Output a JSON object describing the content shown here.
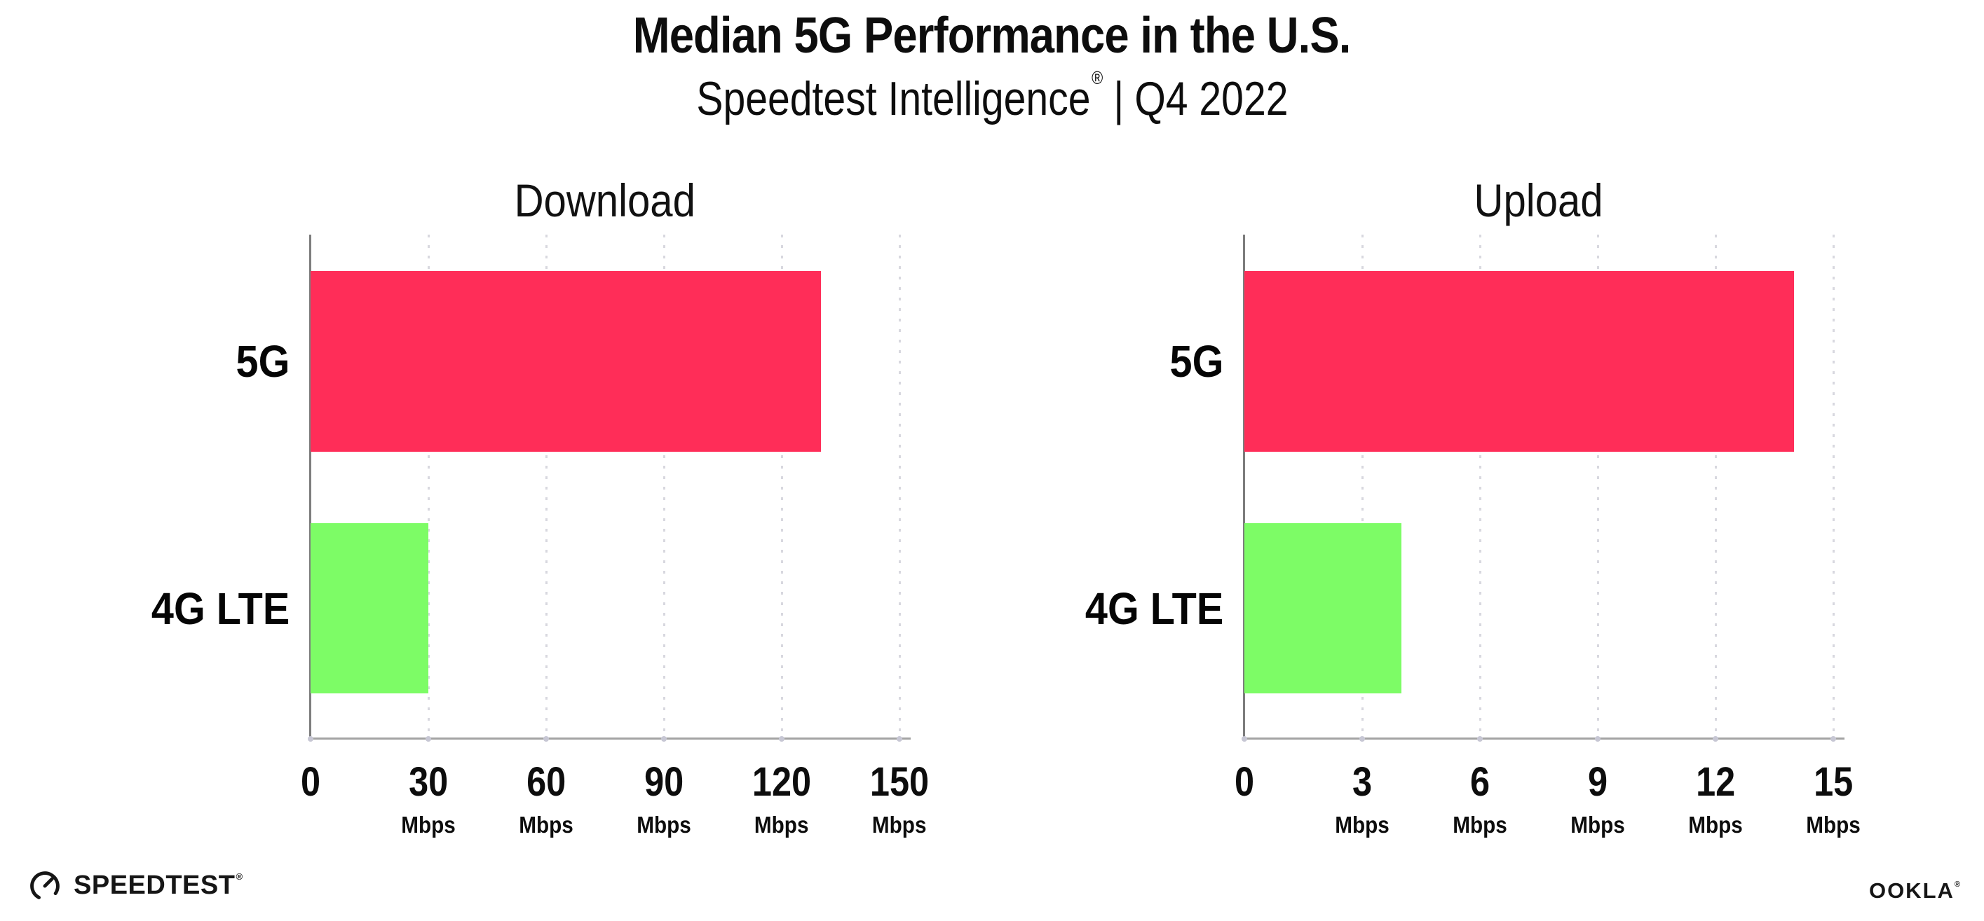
{
  "header": {
    "title": "Median 5G Performance in the U.S.",
    "subtitle": {
      "brand": "Speedtest Intelligence",
      "registered_mark": "®",
      "separator": "|",
      "period": "Q4 2022"
    }
  },
  "chart_data": [
    {
      "type": "bar",
      "orientation": "horizontal",
      "title": "Download",
      "categories": [
        "5G",
        "4G LTE"
      ],
      "values": [
        130,
        30
      ],
      "unit": "Mbps",
      "xlabel": "",
      "ylabel": "",
      "xlim": [
        0,
        150
      ],
      "xticks": [
        0,
        30,
        60,
        90,
        120,
        150
      ],
      "bar_colors": [
        "#ff2d58",
        "#7dfc66"
      ],
      "grid": "vertical-dotted-light",
      "legend": "none"
    },
    {
      "type": "bar",
      "orientation": "horizontal",
      "title": "Upload",
      "categories": [
        "5G",
        "4G LTE"
      ],
      "values": [
        14,
        4
      ],
      "unit": "Mbps",
      "xlabel": "",
      "ylabel": "",
      "xlim": [
        0,
        15
      ],
      "xticks": [
        0,
        3,
        6,
        9,
        12,
        15
      ],
      "bar_colors": [
        "#ff2d58",
        "#7dfc66"
      ],
      "grid": "vertical-dotted-light",
      "legend": "none"
    }
  ],
  "footer": {
    "speedtest_label": "SPEEDTEST",
    "speedtest_mark": "®",
    "speedtest_icon": "gauge-icon",
    "ookla_label": "OOKLA",
    "ookla_mark": "®"
  },
  "colors": {
    "bar_5g": "#ff2d58",
    "bar_4g_lte": "#7dfc66",
    "axis_y": "#7d7d7d",
    "axis_x": "#a3a3a3",
    "gridline": "#d8d8df",
    "text": "#0d0d0d"
  }
}
